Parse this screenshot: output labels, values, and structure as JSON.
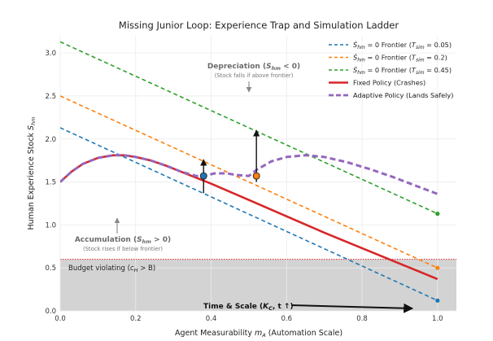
{
  "chart_data": {
    "type": "line",
    "title": "Missing Junior Loop: Experience Trap and Simulation Ladder",
    "xlabel": "Agent Measurability $m_A$ (Automation Scale)",
    "ylabel": "Human Experience Stock $S_{hm}$",
    "xlim": [
      0,
      1.05
    ],
    "ylim": [
      0,
      3.2
    ],
    "xticks": [
      "0.0",
      "0.2",
      "0.4",
      "0.6",
      "0.8",
      "1.0"
    ],
    "yticks": [
      "0.0",
      "0.5",
      "1.0",
      "1.5",
      "2.0",
      "2.5",
      "3.0"
    ],
    "xtick_values": [
      0.0,
      0.2,
      0.4,
      0.6,
      0.8,
      1.0
    ],
    "ytick_values": [
      0.0,
      0.5,
      1.0,
      1.5,
      2.0,
      2.5,
      3.0
    ],
    "grid": true,
    "legend_position": "top-right",
    "budget_threshold": 0.6,
    "series": [
      {
        "name": "Ṡhm = 0 Frontier (Tsim = 0.05)",
        "label_main": "Ṡ",
        "label_sub1": "hm",
        "label_mid": " = 0 Frontier (",
        "label_t": "T",
        "label_sub2": "sim",
        "label_end": " = 0.05)",
        "kind": "frontier",
        "color": "#1f77b4",
        "x": [
          0.0,
          1.0
        ],
        "y": [
          2.13,
          0.12
        ]
      },
      {
        "name": "Ṡhm = 0 Frontier (Tsim = 0.2)",
        "label_main": "Ṡ",
        "label_sub1": "hm",
        "label_mid": " = 0 Frontier (",
        "label_t": "T",
        "label_sub2": "sim",
        "label_end": " = 0.2)",
        "kind": "frontier",
        "color": "#ff7f0e",
        "x": [
          0.0,
          1.0
        ],
        "y": [
          2.5,
          0.5
        ]
      },
      {
        "name": "Ṡhm = 0 Frontier (Tsim = 0.45)",
        "label_main": "Ṡ",
        "label_sub1": "hm",
        "label_mid": " = 0 Frontier (",
        "label_t": "T",
        "label_sub2": "sim",
        "label_end": " = 0.45)",
        "kind": "frontier",
        "color": "#2ca02c",
        "x": [
          0.0,
          1.0
        ],
        "y": [
          3.13,
          1.13
        ]
      },
      {
        "name": "Fixed Policy (Crashes)",
        "label_plain": "Fixed Policy (Crashes)",
        "kind": "fixed",
        "color": "#d62728",
        "x": [
          0.0,
          0.03,
          0.06,
          0.1,
          0.14,
          0.17,
          0.2,
          0.24,
          0.28,
          0.32,
          0.36,
          0.4,
          0.5,
          0.6,
          0.7,
          0.8,
          0.9,
          1.0
        ],
        "y": [
          1.5,
          1.62,
          1.71,
          1.78,
          1.81,
          1.81,
          1.79,
          1.75,
          1.69,
          1.62,
          1.55,
          1.48,
          1.29,
          1.1,
          0.91,
          0.73,
          0.55,
          0.37
        ]
      },
      {
        "name": "Adaptive Policy (Lands Safely)",
        "label_plain": "Adaptive Policy (Lands Safely)",
        "kind": "adaptive",
        "color": "#9467bd",
        "x": [
          0.0,
          0.03,
          0.06,
          0.1,
          0.14,
          0.17,
          0.2,
          0.24,
          0.28,
          0.32,
          0.36,
          0.38,
          0.41,
          0.44,
          0.47,
          0.5,
          0.52,
          0.56,
          0.6,
          0.65,
          0.7,
          0.76,
          0.82,
          0.88,
          0.94,
          1.0
        ],
        "y": [
          1.5,
          1.62,
          1.71,
          1.78,
          1.81,
          1.81,
          1.79,
          1.75,
          1.69,
          1.62,
          1.57,
          1.57,
          1.6,
          1.6,
          1.58,
          1.57,
          1.64,
          1.74,
          1.79,
          1.81,
          1.79,
          1.73,
          1.65,
          1.56,
          1.46,
          1.36
        ]
      }
    ],
    "endpoint_markers": [
      {
        "series": 0,
        "x": 1.0,
        "y": 0.12
      },
      {
        "series": 1,
        "x": 1.0,
        "y": 0.5
      },
      {
        "series": 2,
        "x": 1.0,
        "y": 1.13
      }
    ],
    "switch_points": [
      {
        "x": 0.38,
        "y": 1.57,
        "color": "#1f77b4",
        "arrow_to_y": 1.76,
        "arrow_from_y": 1.37
      },
      {
        "x": 0.52,
        "y": 1.57,
        "color": "#ff7f0e",
        "arrow_to_y": 2.1,
        "arrow_from_y": 1.5
      }
    ],
    "annotations": {
      "depreciation_head": "Depreciation (",
      "depreciation_s": "S",
      "depreciation_sub": "hm",
      "depreciation_tail": " < 0)",
      "depreciation_sub_text": "(Stock falls if above frontier)",
      "accumulation_head": "Accumulation (",
      "accumulation_s": "S",
      "accumulation_sub": "hm",
      "accumulation_tail": " > 0)",
      "accumulation_sub_text": "(Stock rises if below frontier)",
      "budget_head": "Budget violating (",
      "budget_c": "c",
      "budget_sub": "H",
      "budget_tail": " > B)",
      "time_head": "Time & Scale (",
      "time_k": "K",
      "time_sub": "C",
      "time_tail": ", t ↑)"
    }
  }
}
